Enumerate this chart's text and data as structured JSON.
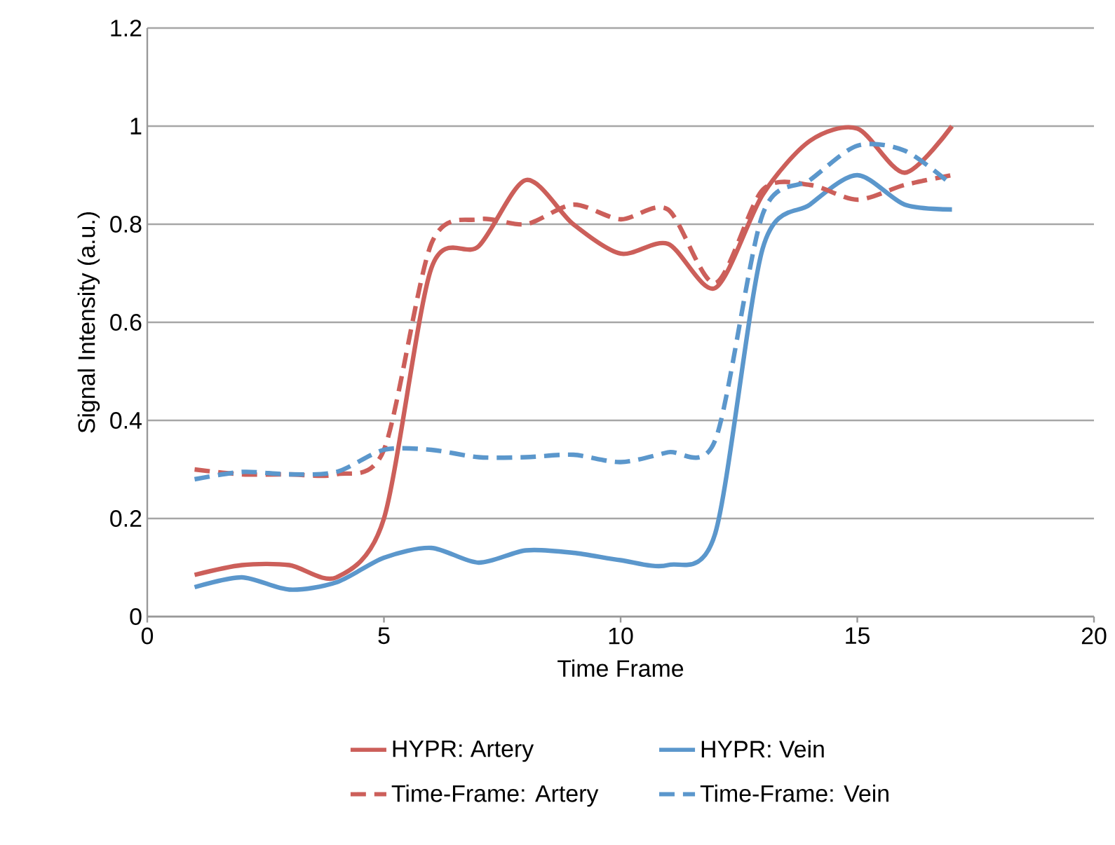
{
  "chart_data": {
    "type": "line",
    "xlabel": "Time Frame",
    "ylabel": "Signal Intensity (a.u.)",
    "x": [
      1,
      2,
      3,
      4,
      5,
      6,
      7,
      8,
      9,
      10,
      11,
      12,
      13,
      14,
      15,
      16,
      17
    ],
    "series": [
      {
        "name": "HYPR: Artery",
        "color": "#cc5f5a",
        "line_style": "solid",
        "values": [
          0.085,
          0.105,
          0.105,
          0.08,
          0.2,
          0.71,
          0.755,
          0.89,
          0.8,
          0.74,
          0.76,
          0.67,
          0.86,
          0.97,
          0.995,
          0.905,
          1.0
        ]
      },
      {
        "name": "HYPR: Vein",
        "color": "#5b97cc",
        "line_style": "solid",
        "values": [
          0.06,
          0.08,
          0.055,
          0.07,
          0.12,
          0.14,
          0.11,
          0.135,
          0.13,
          0.115,
          0.105,
          0.17,
          0.75,
          0.84,
          0.9,
          0.84,
          0.83
        ]
      },
      {
        "name": "Time-Frame: Artery",
        "color": "#cc5f5a",
        "line_style": "dashed",
        "values": [
          0.3,
          0.29,
          0.29,
          0.29,
          0.34,
          0.76,
          0.81,
          0.8,
          0.84,
          0.81,
          0.83,
          0.68,
          0.87,
          0.88,
          0.85,
          0.88,
          0.9
        ]
      },
      {
        "name": "Time-Frame: Vein",
        "color": "#5b97cc",
        "line_style": "dashed",
        "values": [
          0.28,
          0.295,
          0.29,
          0.295,
          0.34,
          0.34,
          0.325,
          0.325,
          0.33,
          0.315,
          0.335,
          0.36,
          0.82,
          0.89,
          0.96,
          0.95,
          0.88
        ]
      }
    ],
    "xlim": [
      0,
      20
    ],
    "xticks": [
      0,
      5,
      10,
      15,
      20
    ],
    "ylim": [
      0,
      1.2
    ],
    "yticks": [
      0,
      0.2,
      0.4,
      0.6,
      0.8,
      1,
      1.2
    ],
    "grid": "y",
    "legend": "bottom",
    "marker": "none"
  }
}
